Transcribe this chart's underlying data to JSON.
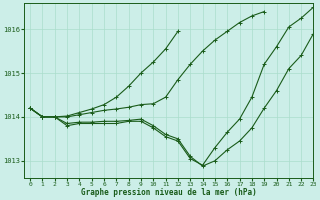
{
  "bg_color": "#cceee8",
  "grid_color": "#aaddcc",
  "line_color": "#1a5c1a",
  "text_color": "#1a5c1a",
  "xlabel": "Graphe pression niveau de la mer (hPa)",
  "xlim": [
    -0.5,
    23
  ],
  "ylim": [
    1012.6,
    1016.6
  ],
  "yticks": [
    1013,
    1014,
    1015,
    1016
  ],
  "xticks": [
    0,
    1,
    2,
    3,
    4,
    5,
    6,
    7,
    8,
    9,
    10,
    11,
    12,
    13,
    14,
    15,
    16,
    17,
    18,
    19,
    20,
    21,
    22,
    23
  ],
  "series": [
    {
      "x": [
        0,
        1,
        2,
        3,
        4,
        5,
        6,
        7,
        8,
        9,
        10,
        11,
        12,
        13,
        14,
        15,
        16,
        17,
        18,
        19,
        20,
        21,
        22,
        23
      ],
      "y": [
        1014.2,
        1014.0,
        1014.0,
        1013.8,
        1013.85,
        1013.85,
        1013.85,
        1013.85,
        1013.9,
        1013.9,
        1013.75,
        1013.55,
        1013.45,
        1013.05,
        1012.9,
        1013.3,
        1013.65,
        1013.95,
        1014.45,
        1015.2,
        1015.6,
        1016.05,
        1016.25,
        1016.5
      ]
    },
    {
      "x": [
        0,
        1,
        2,
        3,
        4,
        5,
        6,
        7,
        8,
        9,
        10,
        11,
        12,
        13,
        14,
        15,
        16,
        17,
        18,
        19,
        20,
        21,
        22,
        23
      ],
      "y": [
        1014.2,
        1014.0,
        1014.0,
        1013.85,
        1013.88,
        1013.88,
        1013.9,
        1013.9,
        1013.92,
        1013.95,
        1013.8,
        1013.6,
        1013.5,
        1013.1,
        1012.88,
        1013.0,
        1013.25,
        1013.45,
        1013.75,
        1014.2,
        1014.6,
        1015.1,
        1015.4,
        1015.9
      ]
    },
    {
      "x": [
        0,
        1,
        2,
        3,
        4,
        5,
        6,
        7,
        8,
        9,
        10,
        11,
        12,
        13,
        14,
        15,
        16,
        17,
        18,
        19
      ],
      "y": [
        1014.2,
        1014.0,
        1014.0,
        1014.0,
        1014.05,
        1014.1,
        1014.15,
        1014.18,
        1014.22,
        1014.28,
        1014.3,
        1014.45,
        1014.85,
        1015.2,
        1015.5,
        1015.75,
        1015.95,
        1016.15,
        1016.3,
        1016.4
      ]
    },
    {
      "x": [
        0,
        1,
        2,
        3,
        4,
        5,
        6,
        7,
        8,
        9,
        10,
        11,
        12
      ],
      "y": [
        1014.2,
        1014.0,
        1014.0,
        1014.02,
        1014.1,
        1014.18,
        1014.28,
        1014.45,
        1014.7,
        1015.0,
        1015.25,
        1015.55,
        1015.95
      ]
    }
  ]
}
